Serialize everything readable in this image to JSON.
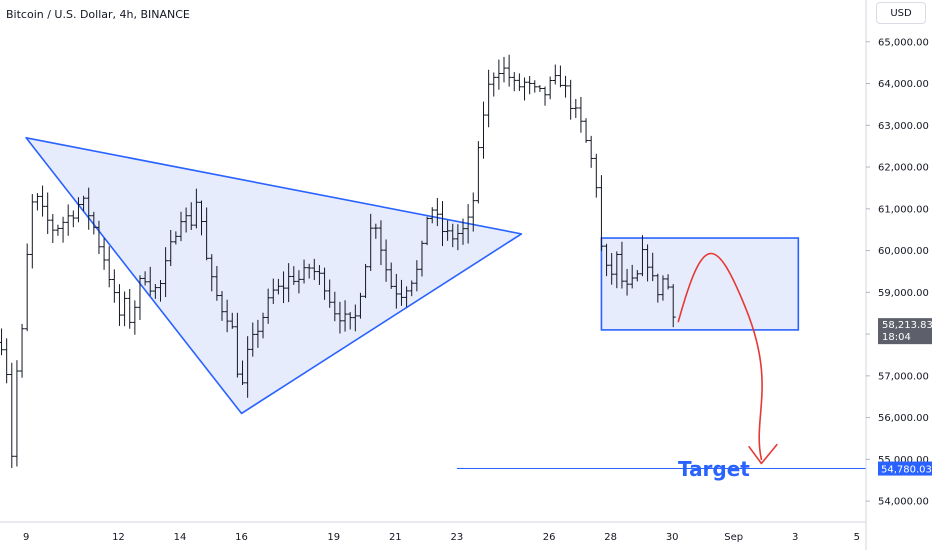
{
  "header": {
    "title": "Bitcoin / U.S. Dollar, 4h, BINANCE",
    "currency": "USD"
  },
  "colors": {
    "candle": "#131722",
    "pattern": "#2962ff",
    "pattern_fill": "#e3e9fb",
    "arrow": "#e53935",
    "price_tag_bg": "#5d606b",
    "target_tag_bg": "#2962ff"
  },
  "annotations": {
    "target_label": "Target",
    "target_price": 54780.03
  },
  "price_tag": {
    "price": "58,213.83",
    "countdown": "18:04"
  },
  "target_tag": {
    "price": "54,780.03"
  },
  "chart_data": {
    "type": "ohlc",
    "title": "Bitcoin / U.S. Dollar, 4h, BINANCE",
    "ylim": [
      53500,
      66000
    ],
    "yticks": [
      54000,
      55000,
      56000,
      57000,
      58000,
      59000,
      60000,
      61000,
      62000,
      63000,
      64000,
      65000
    ],
    "ytick_labels": [
      "54,000.00",
      "55,000.00",
      "56,000.00",
      "57,000.00",
      "58,000.00",
      "59,000.00",
      "60,000.00",
      "61,000.00",
      "62,000.00",
      "63,000.00",
      "64,000.00",
      "65,000.00"
    ],
    "xlim": [
      8.15,
      36.3
    ],
    "x_ticks": [
      {
        "t": 9,
        "label": "9"
      },
      {
        "t": 12,
        "label": "12"
      },
      {
        "t": 14,
        "label": "14"
      },
      {
        "t": 16,
        "label": "16"
      },
      {
        "t": 19,
        "label": "19"
      },
      {
        "t": 21,
        "label": "21"
      },
      {
        "t": 23,
        "label": "23"
      },
      {
        "t": 26,
        "label": "26"
      },
      {
        "t": 28,
        "label": "28"
      },
      {
        "t": 30,
        "label": "30"
      },
      {
        "t": 32,
        "label": "Sep"
      },
      {
        "t": 34,
        "label": "3"
      },
      {
        "t": 36,
        "label": "5"
      }
    ],
    "waypoints": [
      [
        8.2,
        57800
      ],
      [
        8.4,
        57000
      ],
      [
        8.55,
        54900
      ],
      [
        8.7,
        57100
      ],
      [
        8.9,
        58200
      ],
      [
        9.0,
        59500
      ],
      [
        9.15,
        61000
      ],
      [
        9.3,
        61300
      ],
      [
        9.6,
        60800
      ],
      [
        9.9,
        60500
      ],
      [
        10.2,
        60700
      ],
      [
        10.5,
        60900
      ],
      [
        10.8,
        61200
      ],
      [
        11.1,
        60800
      ],
      [
        11.3,
        60300
      ],
      [
        11.6,
        59700
      ],
      [
        11.8,
        59100
      ],
      [
        12.0,
        58400
      ],
      [
        12.2,
        58700
      ],
      [
        12.4,
        58300
      ],
      [
        12.6,
        58900
      ],
      [
        12.8,
        59500
      ],
      [
        13.0,
        59200
      ],
      [
        13.3,
        59000
      ],
      [
        13.6,
        59800
      ],
      [
        13.9,
        60600
      ],
      [
        14.1,
        61000
      ],
      [
        14.3,
        60500
      ],
      [
        14.6,
        61400
      ],
      [
        14.8,
        60000
      ],
      [
        15.0,
        59300
      ],
      [
        15.3,
        58700
      ],
      [
        15.6,
        58400
      ],
      [
        15.8,
        57800
      ],
      [
        15.95,
        56400
      ],
      [
        16.2,
        57500
      ],
      [
        16.5,
        58100
      ],
      [
        16.8,
        58600
      ],
      [
        17.0,
        59000
      ],
      [
        17.3,
        59100
      ],
      [
        17.6,
        59400
      ],
      [
        17.9,
        59300
      ],
      [
        18.2,
        59600
      ],
      [
        18.5,
        59400
      ],
      [
        18.7,
        59200
      ],
      [
        19.0,
        58600
      ],
      [
        19.3,
        58400
      ],
      [
        19.5,
        58200
      ],
      [
        19.7,
        58400
      ],
      [
        20.0,
        59600
      ],
      [
        20.2,
        60500
      ],
      [
        20.4,
        60700
      ],
      [
        20.6,
        59800
      ],
      [
        20.9,
        59100
      ],
      [
        21.2,
        59000
      ],
      [
        21.5,
        59300
      ],
      [
        21.8,
        59600
      ],
      [
        22.0,
        60800
      ],
      [
        22.2,
        61000
      ],
      [
        22.5,
        60500
      ],
      [
        22.8,
        60300
      ],
      [
        23.0,
        60400
      ],
      [
        23.3,
        60500
      ],
      [
        23.5,
        61000
      ],
      [
        23.7,
        62300
      ],
      [
        23.9,
        63500
      ],
      [
        24.1,
        64100
      ],
      [
        24.3,
        64400
      ],
      [
        24.6,
        64300
      ],
      [
        24.9,
        63900
      ],
      [
        25.2,
        64000
      ],
      [
        25.5,
        63800
      ],
      [
        25.8,
        63700
      ],
      [
        26.1,
        64000
      ],
      [
        26.4,
        64100
      ],
      [
        26.6,
        63700
      ],
      [
        26.9,
        63200
      ],
      [
        27.1,
        62900
      ],
      [
        27.3,
        62300
      ],
      [
        27.5,
        61900
      ],
      [
        27.75,
        59600
      ],
      [
        28.0,
        59400
      ],
      [
        28.2,
        59800
      ],
      [
        28.45,
        59000
      ],
      [
        28.7,
        59200
      ],
      [
        28.9,
        59400
      ],
      [
        29.1,
        60100
      ],
      [
        29.3,
        59400
      ],
      [
        29.5,
        59000
      ],
      [
        29.7,
        59300
      ],
      [
        29.9,
        59100
      ],
      [
        30.1,
        58300
      ]
    ],
    "triangle": [
      [
        9.0,
        62700
      ],
      [
        16.0,
        56100
      ],
      [
        25.1,
        60400
      ]
    ],
    "consolidation_box": {
      "x": [
        27.7,
        34.1
      ],
      "y": [
        58100,
        60300
      ]
    },
    "current_price": 58213.83,
    "target_level": 54780.03,
    "arrow_path": [
      [
        30.2,
        58300
      ],
      [
        31.0,
        60300
      ],
      [
        31.4,
        60300
      ],
      [
        32.4,
        58600
      ],
      [
        32.6,
        56000
      ],
      [
        32.9,
        55000
      ]
    ],
    "arrowhead": [
      [
        32.5,
        55300
      ],
      [
        32.9,
        54900
      ],
      [
        33.4,
        55350
      ]
    ]
  }
}
